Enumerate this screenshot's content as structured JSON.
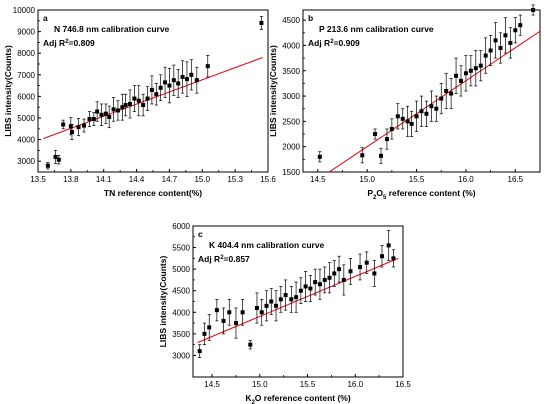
{
  "chart_data": [
    {
      "type": "scatter",
      "panel_letter": "a",
      "title": "N 746.8 nm calibration curve",
      "adj_r2_prefix": "Adj R",
      "adj_r2_sup": "2",
      "adj_r2_value": "=0.809",
      "xlabel": "TN reference content(%)",
      "ylabel": "LIBS intensity(Counts)",
      "xlim": [
        13.5,
        15.6
      ],
      "ylim": [
        2500,
        10000
      ],
      "xticks": [
        13.5,
        13.8,
        14.1,
        14.4,
        14.7,
        15.0,
        15.3,
        15.6
      ],
      "xtick_labels": [
        "13.5",
        "13.8",
        "14.1",
        "14.4",
        "14.7",
        "15.0",
        "15.3",
        "15.6"
      ],
      "yticks": [
        3000,
        4000,
        5000,
        6000,
        7000,
        8000,
        9000,
        10000
      ],
      "ytick_labels": [
        "3000",
        "4000",
        "5000",
        "6000",
        "7000",
        "8000",
        "9000",
        "10000"
      ],
      "fit_line": {
        "x": [
          13.55,
          15.55
        ],
        "y": [
          4050,
          7800
        ],
        "color": "#e8000b"
      },
      "series": [
        {
          "x": 13.59,
          "y": 2790,
          "err": 150
        },
        {
          "x": 13.66,
          "y": 3200,
          "err": 300
        },
        {
          "x": 13.69,
          "y": 3070,
          "err": 200
        },
        {
          "x": 13.73,
          "y": 4700,
          "err": 200
        },
        {
          "x": 13.8,
          "y": 4620,
          "err": 400
        },
        {
          "x": 13.81,
          "y": 4350,
          "err": 350
        },
        {
          "x": 13.87,
          "y": 4580,
          "err": 400
        },
        {
          "x": 13.92,
          "y": 4650,
          "err": 300
        },
        {
          "x": 13.97,
          "y": 4950,
          "err": 350
        },
        {
          "x": 14.01,
          "y": 4950,
          "err": 300
        },
        {
          "x": 14.04,
          "y": 5300,
          "err": 450
        },
        {
          "x": 14.08,
          "y": 5150,
          "err": 500
        },
        {
          "x": 14.12,
          "y": 5200,
          "err": 450
        },
        {
          "x": 14.15,
          "y": 5050,
          "err": 500
        },
        {
          "x": 14.19,
          "y": 5400,
          "err": 550
        },
        {
          "x": 14.23,
          "y": 5350,
          "err": 450
        },
        {
          "x": 14.27,
          "y": 5500,
          "err": 600
        },
        {
          "x": 14.3,
          "y": 5600,
          "err": 500
        },
        {
          "x": 14.34,
          "y": 5650,
          "err": 650
        },
        {
          "x": 14.38,
          "y": 5900,
          "err": 600
        },
        {
          "x": 14.42,
          "y": 5800,
          "err": 700
        },
        {
          "x": 14.46,
          "y": 5600,
          "err": 500
        },
        {
          "x": 14.5,
          "y": 5900,
          "err": 550
        },
        {
          "x": 14.54,
          "y": 6300,
          "err": 650
        },
        {
          "x": 14.58,
          "y": 6100,
          "err": 500
        },
        {
          "x": 14.62,
          "y": 6400,
          "err": 600
        },
        {
          "x": 14.66,
          "y": 6650,
          "err": 700
        },
        {
          "x": 14.7,
          "y": 6500,
          "err": 800
        },
        {
          "x": 14.74,
          "y": 6750,
          "err": 700
        },
        {
          "x": 14.78,
          "y": 6600,
          "err": 650
        },
        {
          "x": 14.82,
          "y": 6900,
          "err": 750
        },
        {
          "x": 14.86,
          "y": 6800,
          "err": 800
        },
        {
          "x": 14.9,
          "y": 7000,
          "err": 700
        },
        {
          "x": 14.95,
          "y": 6750,
          "err": 600
        },
        {
          "x": 15.05,
          "y": 7400,
          "err": 500
        },
        {
          "x": 15.54,
          "y": 9400,
          "err": 300
        }
      ]
    },
    {
      "type": "scatter",
      "panel_letter": "b",
      "title": "P 213.6 nm calibration curve",
      "adj_r2_prefix": "Adj R",
      "adj_r2_sup": "2",
      "adj_r2_value": "=0.909",
      "xlabel_parts": [
        "P",
        "2",
        "O",
        "5",
        " reference content (%)"
      ],
      "ylabel": "LIBS intensity(Counts)",
      "xlim": [
        14.35,
        16.75
      ],
      "ylim": [
        1500,
        4700
      ],
      "xticks": [
        14.5,
        15.0,
        15.5,
        16.0,
        16.5
      ],
      "xtick_labels": [
        "14.5",
        "15.0",
        "15.5",
        "16.0",
        "16.5"
      ],
      "yticks": [
        1500,
        2000,
        2500,
        3000,
        3500,
        4000,
        4500
      ],
      "ytick_labels": [
        "1500",
        "2000",
        "2500",
        "3000",
        "3500",
        "4000",
        "4500"
      ],
      "fit_line": {
        "x": [
          14.6,
          16.75
        ],
        "y": [
          1480,
          4280
        ],
        "color": "#e8000b"
      },
      "series": [
        {
          "x": 14.52,
          "y": 1800,
          "err": 100
        },
        {
          "x": 14.95,
          "y": 1830,
          "err": 150
        },
        {
          "x": 15.08,
          "y": 2250,
          "err": 100
        },
        {
          "x": 15.14,
          "y": 1820,
          "err": 150
        },
        {
          "x": 15.2,
          "y": 2150,
          "err": 200
        },
        {
          "x": 15.25,
          "y": 2350,
          "err": 200
        },
        {
          "x": 15.31,
          "y": 2600,
          "err": 250
        },
        {
          "x": 15.36,
          "y": 2550,
          "err": 200
        },
        {
          "x": 15.41,
          "y": 2500,
          "err": 300
        },
        {
          "x": 15.45,
          "y": 2450,
          "err": 250
        },
        {
          "x": 15.5,
          "y": 2600,
          "err": 300
        },
        {
          "x": 15.55,
          "y": 2700,
          "err": 300
        },
        {
          "x": 15.6,
          "y": 2650,
          "err": 250
        },
        {
          "x": 15.65,
          "y": 2800,
          "err": 300
        },
        {
          "x": 15.7,
          "y": 2750,
          "err": 250
        },
        {
          "x": 15.75,
          "y": 2950,
          "err": 300
        },
        {
          "x": 15.8,
          "y": 3100,
          "err": 350
        },
        {
          "x": 15.85,
          "y": 3050,
          "err": 300
        },
        {
          "x": 15.9,
          "y": 3400,
          "err": 350
        },
        {
          "x": 15.95,
          "y": 3300,
          "err": 300
        },
        {
          "x": 16.0,
          "y": 3450,
          "err": 350
        },
        {
          "x": 16.05,
          "y": 3500,
          "err": 300
        },
        {
          "x": 16.1,
          "y": 3550,
          "err": 350
        },
        {
          "x": 16.15,
          "y": 3600,
          "err": 300
        },
        {
          "x": 16.2,
          "y": 3800,
          "err": 350
        },
        {
          "x": 16.25,
          "y": 3900,
          "err": 300
        },
        {
          "x": 16.3,
          "y": 4100,
          "err": 350
        },
        {
          "x": 16.35,
          "y": 3950,
          "err": 300
        },
        {
          "x": 16.4,
          "y": 4200,
          "err": 350
        },
        {
          "x": 16.45,
          "y": 4050,
          "err": 300
        },
        {
          "x": 16.5,
          "y": 4300,
          "err": 250
        },
        {
          "x": 16.55,
          "y": 4400,
          "err": 200
        },
        {
          "x": 16.68,
          "y": 4700,
          "err": 100
        }
      ]
    },
    {
      "type": "scatter",
      "panel_letter": "c",
      "title": "K 404.4 nm calibration curve",
      "adj_r2_prefix": "Adj R",
      "adj_r2_sup": "2",
      "adj_r2_value": "=0.857",
      "xlabel_parts": [
        "K",
        "2",
        "O reference content (%)",
        "",
        ""
      ],
      "ylabel": "LIBS intensity(Counts)",
      "xlim": [
        14.3,
        16.5
      ],
      "ylim": [
        2500,
        6000
      ],
      "xticks": [
        14.5,
        15.0,
        15.5,
        16.0,
        16.5
      ],
      "xtick_labels": [
        "14.5",
        "15.0",
        "15.5",
        "16.0",
        "16.5"
      ],
      "yticks": [
        3000,
        3500,
        4000,
        4500,
        5000,
        5500,
        6000
      ],
      "ytick_labels": [
        "3000",
        "3500",
        "4000",
        "4500",
        "5000",
        "5500",
        "6000"
      ],
      "fit_line": {
        "x": [
          14.35,
          16.45
        ],
        "y": [
          3300,
          5250
        ],
        "color": "#e8000b"
      },
      "series": [
        {
          "x": 14.37,
          "y": 3100,
          "err": 150
        },
        {
          "x": 14.42,
          "y": 3500,
          "err": 250
        },
        {
          "x": 14.47,
          "y": 3650,
          "err": 300
        },
        {
          "x": 14.55,
          "y": 4050,
          "err": 250
        },
        {
          "x": 14.62,
          "y": 3800,
          "err": 300
        },
        {
          "x": 14.68,
          "y": 4000,
          "err": 300
        },
        {
          "x": 14.75,
          "y": 3750,
          "err": 350
        },
        {
          "x": 14.82,
          "y": 4000,
          "err": 300
        },
        {
          "x": 14.9,
          "y": 3250,
          "err": 100
        },
        {
          "x": 14.97,
          "y": 4100,
          "err": 350
        },
        {
          "x": 15.02,
          "y": 4000,
          "err": 300
        },
        {
          "x": 15.07,
          "y": 4150,
          "err": 350
        },
        {
          "x": 15.12,
          "y": 4250,
          "err": 300
        },
        {
          "x": 15.17,
          "y": 4150,
          "err": 350
        },
        {
          "x": 15.22,
          "y": 4300,
          "err": 300
        },
        {
          "x": 15.27,
          "y": 4400,
          "err": 350
        },
        {
          "x": 15.33,
          "y": 4300,
          "err": 300
        },
        {
          "x": 15.38,
          "y": 4350,
          "err": 350
        },
        {
          "x": 15.43,
          "y": 4500,
          "err": 300
        },
        {
          "x": 15.48,
          "y": 4600,
          "err": 350
        },
        {
          "x": 15.53,
          "y": 4550,
          "err": 300
        },
        {
          "x": 15.58,
          "y": 4700,
          "err": 300
        },
        {
          "x": 15.63,
          "y": 4650,
          "err": 350
        },
        {
          "x": 15.68,
          "y": 4750,
          "err": 300
        },
        {
          "x": 15.73,
          "y": 4800,
          "err": 350
        },
        {
          "x": 15.78,
          "y": 4900,
          "err": 300
        },
        {
          "x": 15.83,
          "y": 5000,
          "err": 300
        },
        {
          "x": 15.88,
          "y": 4750,
          "err": 350
        },
        {
          "x": 15.95,
          "y": 4950,
          "err": 300
        },
        {
          "x": 16.05,
          "y": 5050,
          "err": 300
        },
        {
          "x": 16.12,
          "y": 5150,
          "err": 250
        },
        {
          "x": 16.2,
          "y": 4900,
          "err": 300
        },
        {
          "x": 16.28,
          "y": 5300,
          "err": 250
        },
        {
          "x": 16.35,
          "y": 5550,
          "err": 350
        },
        {
          "x": 16.4,
          "y": 5250,
          "err": 200
        }
      ]
    }
  ]
}
